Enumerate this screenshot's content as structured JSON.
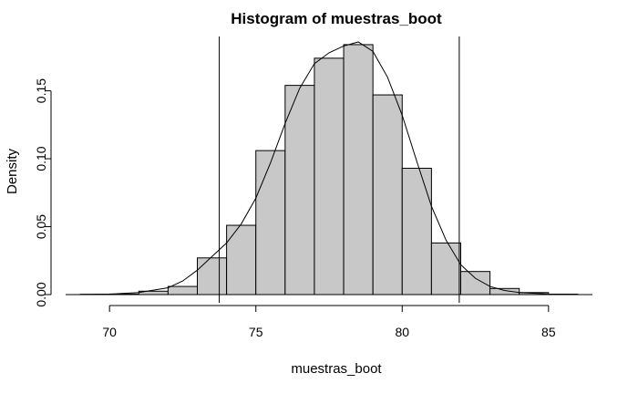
{
  "chart_data": {
    "type": "bar",
    "title": "Histogram of muestras_boot",
    "xlabel": "muestras_boot",
    "ylabel": "Density",
    "xlim": [
      68.5,
      86.5
    ],
    "ylim": [
      0,
      0.19
    ],
    "x_ticks": [
      70,
      75,
      80,
      85
    ],
    "x_tick_labels": [
      "70",
      "75",
      "80",
      "85"
    ],
    "y_ticks": [
      0.0,
      0.05,
      0.1,
      0.15
    ],
    "y_tick_labels": [
      "0.00",
      "0.05",
      "0.10",
      "0.15"
    ],
    "bins": [
      {
        "start": 69,
        "end": 70,
        "density": 0.0002
      },
      {
        "start": 70,
        "end": 71,
        "density": 0.0004
      },
      {
        "start": 71,
        "end": 72,
        "density": 0.0025
      },
      {
        "start": 72,
        "end": 73,
        "density": 0.006
      },
      {
        "start": 73,
        "end": 74,
        "density": 0.027
      },
      {
        "start": 74,
        "end": 75,
        "density": 0.051
      },
      {
        "start": 75,
        "end": 76,
        "density": 0.106
      },
      {
        "start": 76,
        "end": 77,
        "density": 0.154
      },
      {
        "start": 77,
        "end": 78,
        "density": 0.174
      },
      {
        "start": 78,
        "end": 79,
        "density": 0.184
      },
      {
        "start": 79,
        "end": 80,
        "density": 0.147
      },
      {
        "start": 80,
        "end": 81,
        "density": 0.093
      },
      {
        "start": 81,
        "end": 82,
        "density": 0.038
      },
      {
        "start": 82,
        "end": 83,
        "density": 0.017
      },
      {
        "start": 83,
        "end": 84,
        "density": 0.0045
      },
      {
        "start": 84,
        "end": 85,
        "density": 0.0015
      },
      {
        "start": 85,
        "end": 86,
        "density": 0.0003
      }
    ],
    "density_curve": {
      "x": [
        69,
        70,
        71,
        72,
        72.5,
        73,
        73.5,
        74,
        74.5,
        75,
        75.5,
        76,
        76.5,
        77,
        77.5,
        78,
        78.5,
        79,
        79.5,
        80,
        80.5,
        81,
        81.5,
        82,
        82.5,
        83,
        83.5,
        84,
        85,
        86
      ],
      "y": [
        0.0001,
        0.0003,
        0.0015,
        0.005,
        0.01,
        0.018,
        0.028,
        0.038,
        0.052,
        0.071,
        0.097,
        0.126,
        0.152,
        0.17,
        0.178,
        0.183,
        0.186,
        0.179,
        0.16,
        0.132,
        0.098,
        0.065,
        0.04,
        0.022,
        0.012,
        0.006,
        0.003,
        0.0015,
        0.0004,
        0.0001
      ]
    },
    "reference_lines": [
      73.75,
      81.95
    ],
    "grid": false,
    "legend": "none"
  }
}
